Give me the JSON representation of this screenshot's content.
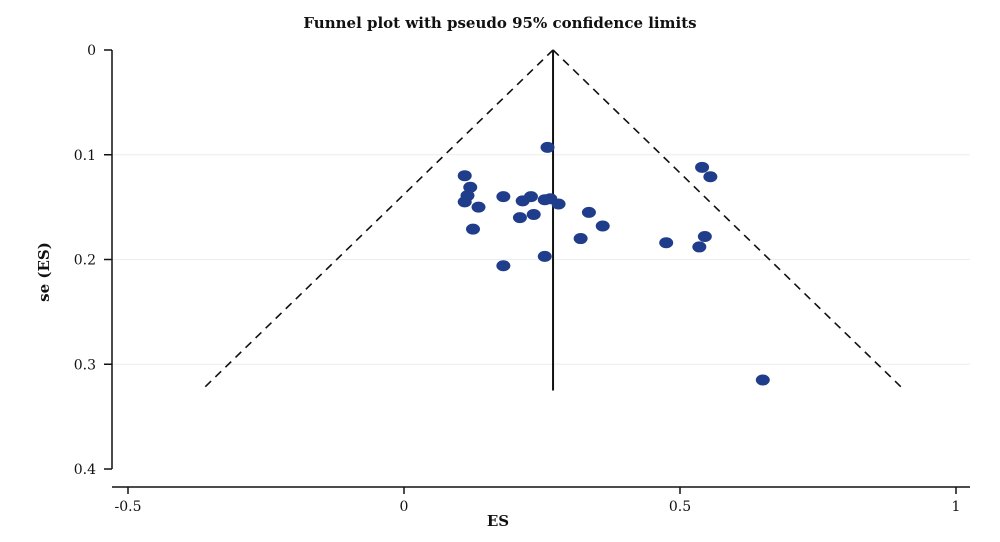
{
  "chart_data": {
    "type": "scatter",
    "title": "Funnel plot with pseudo 95% confidence limits",
    "xlabel": "ES",
    "ylabel": "se (ES)",
    "xlim": [
      -0.5,
      1
    ],
    "ylim": [
      0,
      0.4
    ],
    "y_reversed": true,
    "xticks": [
      -0.5,
      0,
      0.5,
      1
    ],
    "xtick_labels": [
      "-0.5",
      "0",
      "0.5",
      "1"
    ],
    "yticks": [
      0,
      0.1,
      0.2,
      0.3,
      0.4
    ],
    "ytick_labels": [
      "0",
      "0.1",
      "0.2",
      "0.3",
      "0.4"
    ],
    "grid": "horizontal",
    "pooled_effect": 0.27,
    "confidence_limits_se_max": 0.325,
    "points": [
      {
        "x": 0.26,
        "y": 0.093
      },
      {
        "x": 0.54,
        "y": 0.112
      },
      {
        "x": 0.555,
        "y": 0.121
      },
      {
        "x": 0.11,
        "y": 0.12
      },
      {
        "x": 0.12,
        "y": 0.131
      },
      {
        "x": 0.115,
        "y": 0.139
      },
      {
        "x": 0.11,
        "y": 0.145
      },
      {
        "x": 0.135,
        "y": 0.15
      },
      {
        "x": 0.18,
        "y": 0.14
      },
      {
        "x": 0.215,
        "y": 0.144
      },
      {
        "x": 0.23,
        "y": 0.14
      },
      {
        "x": 0.255,
        "y": 0.143
      },
      {
        "x": 0.265,
        "y": 0.142
      },
      {
        "x": 0.28,
        "y": 0.147
      },
      {
        "x": 0.21,
        "y": 0.16
      },
      {
        "x": 0.235,
        "y": 0.157
      },
      {
        "x": 0.335,
        "y": 0.155
      },
      {
        "x": 0.36,
        "y": 0.168
      },
      {
        "x": 0.125,
        "y": 0.171
      },
      {
        "x": 0.32,
        "y": 0.18
      },
      {
        "x": 0.475,
        "y": 0.184
      },
      {
        "x": 0.545,
        "y": 0.178
      },
      {
        "x": 0.535,
        "y": 0.188
      },
      {
        "x": 0.255,
        "y": 0.197
      },
      {
        "x": 0.18,
        "y": 0.206
      },
      {
        "x": 0.65,
        "y": 0.315
      }
    ],
    "colors": {
      "marker": "#1f3d8a",
      "line": "#111111",
      "grid": "#e9eef2"
    }
  }
}
